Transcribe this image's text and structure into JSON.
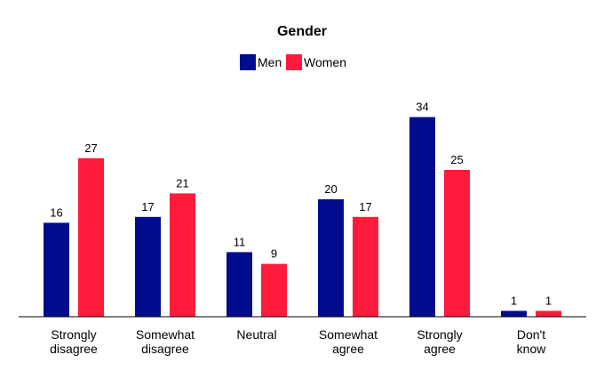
{
  "chart_data": {
    "type": "bar",
    "title": "Gender",
    "xlabel": "",
    "ylabel": "",
    "ylim": [
      0,
      40
    ],
    "grid": false,
    "legend_position": "top-center",
    "categories": [
      [
        "Strongly",
        "disagree"
      ],
      [
        "Somewhat",
        "disagree"
      ],
      [
        "Neutral"
      ],
      [
        "Somewhat",
        "agree"
      ],
      [
        "Strongly",
        "agree"
      ],
      [
        "Don't",
        "know"
      ]
    ],
    "series": [
      {
        "name": "Men",
        "color": "#000C8E",
        "values": [
          16,
          17,
          11,
          20,
          34,
          1
        ]
      },
      {
        "name": "Women",
        "color": "#FF1B3B",
        "values": [
          27,
          21,
          9,
          17,
          25,
          1
        ]
      }
    ]
  }
}
